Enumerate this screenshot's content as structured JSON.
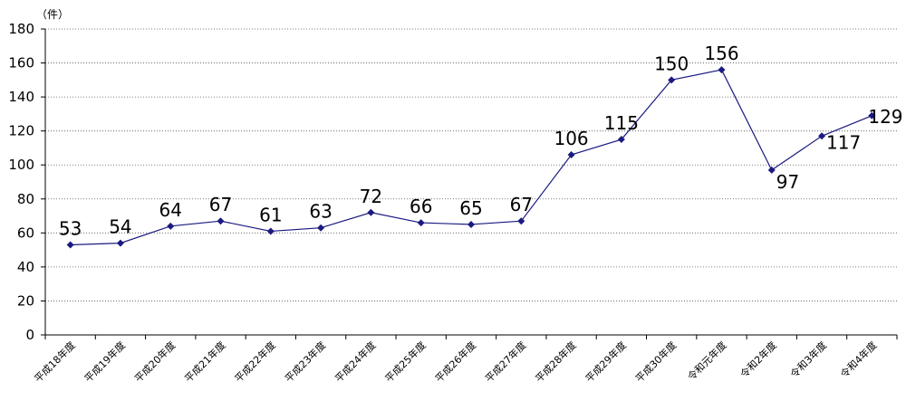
{
  "chart_data": {
    "type": "line",
    "ylabel": "（件）",
    "ylim": [
      0,
      180
    ],
    "yticks": [
      "0",
      "20",
      "40",
      "60",
      "80",
      "100",
      "120",
      "140",
      "160",
      "180"
    ],
    "categories": [
      "平成18年度",
      "平成19年度",
      "平成20年度",
      "平成21年度",
      "平成22年度",
      "平成23年度",
      "平成24年度",
      "平成25年度",
      "平成26年度",
      "平成27年度",
      "平成28年度",
      "平成29年度",
      "平成30年度",
      "令和元年度",
      "令和2年度",
      "令和3年度",
      "令和4年度"
    ],
    "values": [
      53,
      54,
      64,
      67,
      61,
      63,
      72,
      66,
      65,
      67,
      106,
      115,
      150,
      156,
      97,
      117,
      129
    ],
    "grid": true,
    "line_color": "#1a1a80"
  }
}
